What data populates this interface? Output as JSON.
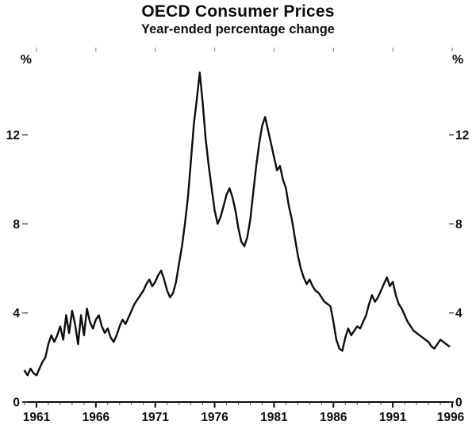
{
  "title": "OECD Consumer Prices",
  "subtitle": "Year-ended percentage change",
  "chart_data": {
    "type": "line",
    "title": "OECD Consumer Prices",
    "subtitle": "Year-ended percentage change",
    "unit": "%",
    "ylabel_left": "%",
    "ylabel_right": "%",
    "x_tick_labels": [
      "1961",
      "1966",
      "1971",
      "1976",
      "1981",
      "1986",
      "1991",
      "1996"
    ],
    "x_tick_years": [
      1961,
      1966,
      1971,
      1976,
      1981,
      1986,
      1991,
      1996
    ],
    "y_ticks": [
      0,
      4,
      8,
      12
    ],
    "y_tick_labels": [
      "0",
      "4",
      "8",
      "12"
    ],
    "xlim": [
      1960,
      1996
    ],
    "ylim": [
      0,
      15.3
    ],
    "grid": false,
    "legend": "none",
    "line_color": "#0d0d0d",
    "axis_color": "#0d0d0d",
    "series": [
      {
        "name": "OECD consumer prices, year-ended percentage change",
        "x_start": 1960.0,
        "x_step": 0.25,
        "values": [
          1.4,
          1.2,
          1.5,
          1.3,
          1.2,
          1.5,
          1.8,
          2.0,
          2.6,
          3.0,
          2.7,
          3.0,
          3.4,
          2.8,
          3.9,
          3.1,
          4.1,
          3.5,
          2.6,
          3.9,
          3.0,
          4.2,
          3.6,
          3.3,
          3.7,
          3.9,
          3.4,
          3.1,
          3.3,
          2.9,
          2.7,
          3.0,
          3.4,
          3.7,
          3.5,
          3.8,
          4.1,
          4.4,
          4.6,
          4.8,
          5.0,
          5.3,
          5.5,
          5.2,
          5.4,
          5.7,
          5.9,
          5.5,
          5.0,
          4.7,
          4.9,
          5.4,
          6.2,
          7.0,
          8.0,
          9.2,
          10.8,
          12.5,
          13.6,
          14.8,
          13.4,
          11.8,
          10.6,
          9.6,
          8.6,
          8.0,
          8.3,
          8.8,
          9.3,
          9.6,
          9.2,
          8.6,
          7.8,
          7.2,
          7.0,
          7.4,
          8.2,
          9.4,
          10.6,
          11.6,
          12.4,
          12.8,
          12.2,
          11.6,
          11.0,
          10.4,
          10.6,
          10.0,
          9.6,
          8.8,
          8.2,
          7.4,
          6.6,
          6.0,
          5.6,
          5.3,
          5.5,
          5.2,
          5.0,
          4.9,
          4.7,
          4.5,
          4.4,
          4.3,
          3.6,
          2.8,
          2.4,
          2.3,
          2.9,
          3.3,
          3.0,
          3.2,
          3.4,
          3.3,
          3.6,
          3.9,
          4.4,
          4.8,
          4.5,
          4.7,
          5.0,
          5.3,
          5.6,
          5.2,
          5.4,
          4.8,
          4.4,
          4.2,
          3.9,
          3.6,
          3.4,
          3.2,
          3.1,
          3.0,
          2.9,
          2.8,
          2.7,
          2.5,
          2.4,
          2.6,
          2.8,
          2.7,
          2.6,
          2.5
        ]
      }
    ]
  }
}
